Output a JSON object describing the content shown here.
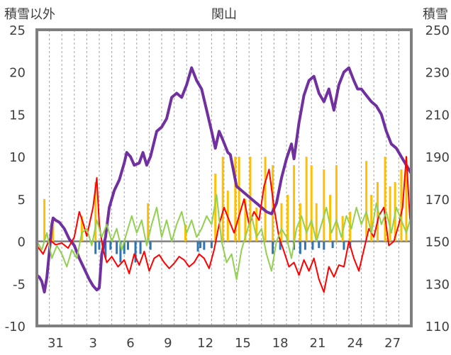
{
  "chart_data": {
    "type": "line",
    "title": "関山",
    "left_axis": {
      "label": "積雪以外",
      "ylim": [
        -10,
        25
      ],
      "ticks": [
        -10,
        -5,
        0,
        5,
        10,
        15,
        20,
        25
      ]
    },
    "right_axis": {
      "label": "積雪",
      "ylim": [
        110,
        250
      ],
      "ticks": [
        110,
        130,
        150,
        170,
        190,
        210,
        230,
        250
      ]
    },
    "xlim": [
      0,
      30
    ],
    "x_ticks": [
      {
        "x": 1.5,
        "label": "31"
      },
      {
        "x": 4.5,
        "label": "3"
      },
      {
        "x": 7.5,
        "label": "6"
      },
      {
        "x": 10.5,
        "label": "9"
      },
      {
        "x": 13.5,
        "label": "12"
      },
      {
        "x": 16.5,
        "label": "15"
      },
      {
        "x": 19.5,
        "label": "18"
      },
      {
        "x": 22.5,
        "label": "21"
      },
      {
        "x": 25.5,
        "label": "24"
      },
      {
        "x": 28.5,
        "label": "27"
      }
    ],
    "grid": "vertical dashed daily",
    "colors": {
      "snow_depth": "#7030A0",
      "temperature": "#FF0000",
      "temperature_secondary": "#92D050",
      "snowfall": "#FFC000",
      "precip_negative": "#2E75B6",
      "zero_line": "#7F7F7F"
    },
    "series": [
      {
        "axis": "right",
        "color_key": "snow_depth",
        "points": [
          [
            0,
            134
          ],
          [
            0.2,
            133
          ],
          [
            0.4,
            131
          ],
          [
            0.6,
            126
          ],
          [
            0.8,
            133
          ],
          [
            1.0,
            145
          ],
          [
            1.2,
            158
          ],
          [
            1.3,
            161
          ],
          [
            1.5,
            160
          ],
          [
            1.8,
            159
          ],
          [
            2.2,
            156
          ],
          [
            2.6,
            151
          ],
          [
            3.0,
            148
          ],
          [
            3.4,
            142
          ],
          [
            3.8,
            137
          ],
          [
            4.2,
            132
          ],
          [
            4.5,
            129
          ],
          [
            4.8,
            127
          ],
          [
            5.0,
            128
          ],
          [
            5.2,
            144
          ],
          [
            5.5,
            152
          ],
          [
            5.8,
            166
          ],
          [
            6.2,
            174
          ],
          [
            6.6,
            179
          ],
          [
            7.0,
            187
          ],
          [
            7.2,
            192
          ],
          [
            7.5,
            190
          ],
          [
            7.8,
            186
          ],
          [
            8.2,
            187
          ],
          [
            8.5,
            192
          ],
          [
            8.8,
            186
          ],
          [
            9.1,
            190
          ],
          [
            9.6,
            202
          ],
          [
            10.0,
            204
          ],
          [
            10.4,
            208
          ],
          [
            10.8,
            218
          ],
          [
            11.2,
            220
          ],
          [
            11.6,
            218
          ],
          [
            12.0,
            224
          ],
          [
            12.4,
            232
          ],
          [
            12.8,
            226
          ],
          [
            13.2,
            222
          ],
          [
            13.6,
            212
          ],
          [
            14.0,
            202
          ],
          [
            14.3,
            194
          ],
          [
            14.6,
            202
          ],
          [
            14.9,
            198
          ],
          [
            15.3,
            192
          ],
          [
            15.5,
            191
          ],
          [
            16.0,
            176
          ],
          [
            16.4,
            174
          ],
          [
            16.8,
            172
          ],
          [
            17.2,
            170
          ],
          [
            17.6,
            168
          ],
          [
            18.0,
            166
          ],
          [
            18.4,
            164
          ],
          [
            18.8,
            163
          ],
          [
            19.2,
            168
          ],
          [
            19.6,
            180
          ],
          [
            20.0,
            189
          ],
          [
            20.4,
            196
          ],
          [
            20.6,
            189
          ],
          [
            21.0,
            206
          ],
          [
            21.4,
            219
          ],
          [
            21.8,
            226
          ],
          [
            22.2,
            228
          ],
          [
            22.6,
            220
          ],
          [
            23.0,
            216
          ],
          [
            23.4,
            222
          ],
          [
            23.8,
            212
          ],
          [
            24.2,
            224
          ],
          [
            24.6,
            230
          ],
          [
            25.0,
            232
          ],
          [
            25.4,
            226
          ],
          [
            25.7,
            222
          ],
          [
            26.0,
            222
          ],
          [
            26.4,
            219
          ],
          [
            26.8,
            216
          ],
          [
            27.2,
            214
          ],
          [
            27.6,
            210
          ],
          [
            28.0,
            202
          ],
          [
            28.4,
            196
          ],
          [
            28.8,
            194
          ],
          [
            29.2,
            190
          ],
          [
            29.6,
            186
          ],
          [
            30.0,
            182
          ]
        ]
      },
      {
        "axis": "left",
        "color_key": "temperature",
        "points": [
          [
            0,
            -0.5
          ],
          [
            0.5,
            -1.5
          ],
          [
            1.0,
            0.2
          ],
          [
            1.5,
            -0.4
          ],
          [
            2.0,
            -0.2
          ],
          [
            2.5,
            -0.8
          ],
          [
            3.0,
            0.5
          ],
          [
            3.4,
            3.5
          ],
          [
            3.7,
            2.2
          ],
          [
            4.0,
            0.6
          ],
          [
            4.5,
            4.0
          ],
          [
            4.8,
            7.5
          ],
          [
            5.0,
            2.0
          ],
          [
            5.3,
            -1.0
          ],
          [
            5.6,
            -2.5
          ],
          [
            6.0,
            -1.8
          ],
          [
            6.5,
            -3.0
          ],
          [
            7.0,
            -2.2
          ],
          [
            7.4,
            -3.8
          ],
          [
            7.8,
            -1.5
          ],
          [
            8.2,
            -2.8
          ],
          [
            8.6,
            -1.2
          ],
          [
            9.0,
            -3.5
          ],
          [
            9.4,
            -2.0
          ],
          [
            9.8,
            -1.6
          ],
          [
            10.2,
            -2.5
          ],
          [
            10.6,
            -3.2
          ],
          [
            11.0,
            -2.6
          ],
          [
            11.4,
            -1.8
          ],
          [
            11.8,
            -2.2
          ],
          [
            12.2,
            -3.0
          ],
          [
            12.6,
            -2.5
          ],
          [
            13.0,
            -1.5
          ],
          [
            13.4,
            -2.0
          ],
          [
            13.8,
            -3.2
          ],
          [
            14.2,
            -1.0
          ],
          [
            14.6,
            2.0
          ],
          [
            15.0,
            4.0
          ],
          [
            15.4,
            2.5
          ],
          [
            15.8,
            1.0
          ],
          [
            16.2,
            3.0
          ],
          [
            16.6,
            5.0
          ],
          [
            17.0,
            2.0
          ],
          [
            17.4,
            3.5
          ],
          [
            17.8,
            2.5
          ],
          [
            18.2,
            6.5
          ],
          [
            18.6,
            8.5
          ],
          [
            19.0,
            4.0
          ],
          [
            19.4,
            0.5
          ],
          [
            19.8,
            -1.2
          ],
          [
            20.2,
            -3.0
          ],
          [
            20.6,
            -2.5
          ],
          [
            21.0,
            -4.0
          ],
          [
            21.4,
            -2.2
          ],
          [
            21.8,
            -3.5
          ],
          [
            22.2,
            -2.0
          ],
          [
            22.6,
            -4.5
          ],
          [
            23.0,
            -6.0
          ],
          [
            23.4,
            -3.0
          ],
          [
            23.8,
            -4.2
          ],
          [
            24.2,
            -2.8
          ],
          [
            24.6,
            -3.0
          ],
          [
            25.0,
            0.0
          ],
          [
            25.4,
            -2.0
          ],
          [
            25.8,
            -3.5
          ],
          [
            26.2,
            -1.0
          ],
          [
            26.6,
            1.5
          ],
          [
            27.0,
            0.5
          ],
          [
            27.4,
            3.0
          ],
          [
            27.8,
            4.0
          ],
          [
            28.2,
            -0.5
          ],
          [
            28.6,
            0.0
          ],
          [
            29.0,
            2.0
          ],
          [
            29.3,
            4.0
          ],
          [
            29.6,
            10.0
          ],
          [
            29.9,
            2.5
          ],
          [
            30.0,
            3.5
          ]
        ]
      },
      {
        "axis": "left",
        "color_key": "temperature_secondary",
        "points": [
          [
            0,
            0.0
          ],
          [
            0.4,
            -1.0
          ],
          [
            0.8,
            1.0
          ],
          [
            1.2,
            -2.0
          ],
          [
            1.6,
            -0.5
          ],
          [
            2.0,
            -1.5
          ],
          [
            2.4,
            -3.0
          ],
          [
            2.8,
            -1.0
          ],
          [
            3.2,
            -2.0
          ],
          [
            3.6,
            1.0
          ],
          [
            4.0,
            1.5
          ],
          [
            4.4,
            -0.5
          ],
          [
            4.8,
            2.5
          ],
          [
            5.2,
            0.5
          ],
          [
            5.6,
            2.0
          ],
          [
            6.0,
            0.0
          ],
          [
            6.4,
            1.5
          ],
          [
            6.8,
            -1.0
          ],
          [
            7.2,
            1.0
          ],
          [
            7.6,
            3.0
          ],
          [
            8.0,
            1.0
          ],
          [
            8.4,
            2.5
          ],
          [
            8.8,
            -0.5
          ],
          [
            9.2,
            2.0
          ],
          [
            9.6,
            4.0
          ],
          [
            10.0,
            0.5
          ],
          [
            10.4,
            2.5
          ],
          [
            10.8,
            0.0
          ],
          [
            11.2,
            2.0
          ],
          [
            11.6,
            3.5
          ],
          [
            12.0,
            1.0
          ],
          [
            12.4,
            2.5
          ],
          [
            12.8,
            0.5
          ],
          [
            13.2,
            1.5
          ],
          [
            13.6,
            3.0
          ],
          [
            14.0,
            2.0
          ],
          [
            14.4,
            5.5
          ],
          [
            14.8,
            0.0
          ],
          [
            15.2,
            -2.5
          ],
          [
            15.6,
            -1.5
          ],
          [
            16.0,
            -4.5
          ],
          [
            16.4,
            -1.0
          ],
          [
            16.8,
            1.0
          ],
          [
            17.2,
            3.0
          ],
          [
            17.6,
            0.5
          ],
          [
            18.0,
            1.5
          ],
          [
            18.4,
            -1.5
          ],
          [
            18.8,
            -3.5
          ],
          [
            19.2,
            0.0
          ],
          [
            19.6,
            1.5
          ],
          [
            20.0,
            0.5
          ],
          [
            20.4,
            -2.0
          ],
          [
            20.8,
            1.5
          ],
          [
            21.2,
            3.0
          ],
          [
            21.6,
            1.0
          ],
          [
            22.0,
            2.5
          ],
          [
            22.4,
            0.0
          ],
          [
            22.8,
            2.0
          ],
          [
            23.2,
            4.0
          ],
          [
            23.6,
            1.0
          ],
          [
            24.0,
            2.5
          ],
          [
            24.4,
            0.5
          ],
          [
            24.8,
            3.0
          ],
          [
            25.2,
            1.5
          ],
          [
            25.6,
            4.0
          ],
          [
            26.0,
            2.0
          ],
          [
            26.4,
            3.5
          ],
          [
            26.8,
            1.0
          ],
          [
            27.2,
            4.5
          ],
          [
            27.6,
            2.0
          ],
          [
            28.0,
            3.5
          ],
          [
            28.4,
            1.0
          ],
          [
            28.8,
            4.0
          ],
          [
            29.2,
            2.5
          ],
          [
            29.6,
            1.0
          ],
          [
            30.0,
            3.0
          ]
        ]
      },
      {
        "axis": "left",
        "color_key": "snowfall",
        "type": "bar",
        "points": [
          [
            0.6,
            5.0
          ],
          [
            1.3,
            2.5
          ],
          [
            3.6,
            3.0
          ],
          [
            4.7,
            7.0
          ],
          [
            8.9,
            4.5
          ],
          [
            11.9,
            2.0
          ],
          [
            14.3,
            8.0
          ],
          [
            14.9,
            10.0
          ],
          [
            15.3,
            6.0
          ],
          [
            15.9,
            10.0
          ],
          [
            16.2,
            10.0
          ],
          [
            16.7,
            5.0
          ],
          [
            17.1,
            10.0
          ],
          [
            17.6,
            4.0
          ],
          [
            18.3,
            10.0
          ],
          [
            18.9,
            9.0
          ],
          [
            19.6,
            4.5
          ],
          [
            20.1,
            5.5
          ],
          [
            20.6,
            9.0
          ],
          [
            21.1,
            4.5
          ],
          [
            21.6,
            10.0
          ],
          [
            22.0,
            9.0
          ],
          [
            22.4,
            4.5
          ],
          [
            23.0,
            8.5
          ],
          [
            23.5,
            5.5
          ],
          [
            24.0,
            9.0
          ],
          [
            24.5,
            3.0
          ],
          [
            25.1,
            3.5
          ],
          [
            26.4,
            9.5
          ],
          [
            26.8,
            5.5
          ],
          [
            27.3,
            7.0
          ],
          [
            27.9,
            10.0
          ],
          [
            28.3,
            6.5
          ],
          [
            28.7,
            7.0
          ],
          [
            29.2,
            8.5
          ],
          [
            29.6,
            10.0
          ]
        ]
      },
      {
        "axis": "left",
        "color_key": "precip_negative",
        "type": "bar",
        "points": [
          [
            4.7,
            -1.5
          ],
          [
            5.0,
            -1.0
          ],
          [
            5.5,
            -2.0
          ],
          [
            5.9,
            -1.0
          ],
          [
            6.4,
            -1.5
          ],
          [
            6.7,
            -2.5
          ],
          [
            7.0,
            -1.5
          ],
          [
            7.3,
            -1.0
          ],
          [
            7.9,
            -2.5
          ],
          [
            8.3,
            -1.5
          ],
          [
            9.1,
            -1.0
          ],
          [
            12.9,
            -1.2
          ],
          [
            13.1,
            -0.8
          ],
          [
            13.4,
            -1.0
          ],
          [
            14.0,
            -0.8
          ],
          [
            18.9,
            -1.5
          ],
          [
            19.5,
            -1.0
          ],
          [
            20.6,
            -1.0
          ],
          [
            21.1,
            -1.5
          ],
          [
            21.5,
            -1.0
          ],
          [
            22.1,
            -1.0
          ],
          [
            22.6,
            -0.8
          ],
          [
            23.0,
            -1.0
          ],
          [
            23.7,
            -0.8
          ],
          [
            24.6,
            -1.0
          ],
          [
            25.1,
            -0.8
          ]
        ]
      }
    ]
  }
}
